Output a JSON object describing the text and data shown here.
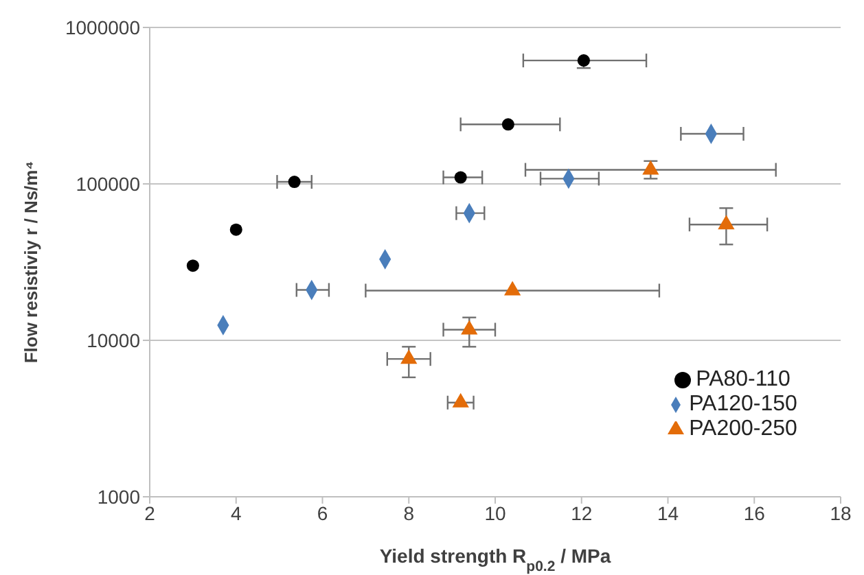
{
  "chart_data": {
    "type": "scatter",
    "xlabel": "Yield strength R$_{p0.2}$ / MPa",
    "ylabel": "Flow resistiviy r / Ns/m⁴",
    "xlim": [
      2,
      18
    ],
    "xticks": [
      2,
      4,
      6,
      8,
      10,
      12,
      14,
      16,
      18
    ],
    "ylim": [
      1000,
      1000000
    ],
    "yticks": [
      1000,
      10000,
      100000,
      1000000
    ],
    "log": "y",
    "grid": "y",
    "legend": "bottom right",
    "series": [
      {
        "name": "PA80-110",
        "color": "#000000",
        "marker": "circle",
        "x": [
          3.0,
          4.0,
          5.35,
          9.2,
          10.3,
          12.05
        ],
        "values": [
          30000,
          51000,
          103000,
          110000,
          240000,
          615000
        ],
        "xerrors": [
          null,
          null,
          [
            4.95,
            5.75
          ],
          [
            8.8,
            9.7
          ],
          [
            9.2,
            11.5
          ],
          [
            10.65,
            13.5
          ]
        ],
        "errors": [
          null,
          null,
          null,
          null,
          null,
          [
            550000,
            615000
          ]
        ]
      },
      {
        "name": "PA120-150",
        "color": "#4a7ebb",
        "marker": "diamond",
        "x": [
          3.7,
          5.75,
          7.45,
          9.4,
          11.7,
          15.0
        ],
        "values": [
          12500,
          21000,
          33000,
          65000,
          108000,
          209000
        ],
        "xerrors": [
          null,
          [
            5.4,
            6.15
          ],
          null,
          [
            9.1,
            9.75
          ],
          [
            11.05,
            12.4
          ],
          [
            14.3,
            15.75
          ]
        ],
        "errors": [
          null,
          null,
          null,
          null,
          null,
          null
        ]
      },
      {
        "name": "PA200-250",
        "color": "#e36c09",
        "marker": "triangle",
        "x": [
          13.6,
          15.35,
          10.4,
          9.4,
          8.0,
          9.2
        ],
        "values": [
          123000,
          55000,
          20800,
          11700,
          7600,
          4000
        ],
        "xerrors": [
          [
            10.7,
            16.5
          ],
          [
            14.5,
            16.3
          ],
          [
            7.0,
            13.8
          ],
          [
            8.8,
            10.0
          ],
          [
            7.5,
            8.5
          ],
          [
            8.9,
            9.5
          ]
        ],
        "errors": [
          [
            108000,
            140000
          ],
          [
            41000,
            70000
          ],
          null,
          [
            9100,
            14000
          ],
          [
            5800,
            9100
          ],
          null
        ]
      }
    ]
  }
}
